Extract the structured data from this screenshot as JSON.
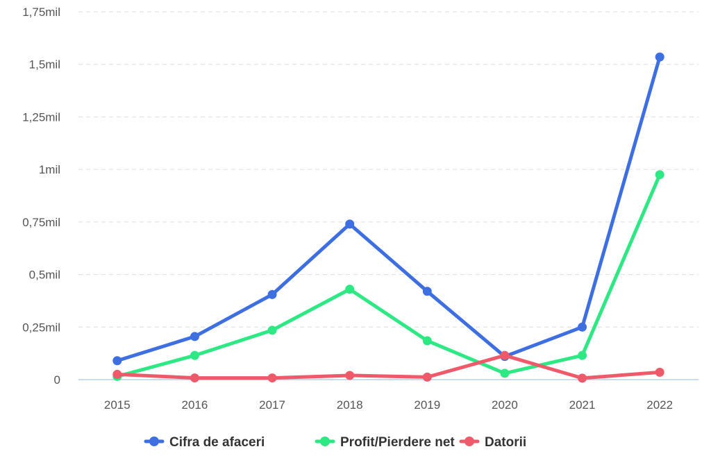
{
  "chart_data": {
    "type": "line",
    "categories": [
      "2015",
      "2016",
      "2017",
      "2018",
      "2019",
      "2020",
      "2021",
      "2022"
    ],
    "y_ticks": [
      {
        "value": 0,
        "label": "0"
      },
      {
        "value": 0.25,
        "label": "0,25mil"
      },
      {
        "value": 0.5,
        "label": "0,5mil"
      },
      {
        "value": 0.75,
        "label": "0,75mil"
      },
      {
        "value": 1.0,
        "label": "1mil"
      },
      {
        "value": 1.25,
        "label": "1,25mil"
      },
      {
        "value": 1.5,
        "label": "1,5mil"
      },
      {
        "value": 1.75,
        "label": "1,75mil"
      }
    ],
    "ylim": [
      0,
      1.75
    ],
    "grid": true,
    "legend_position": "bottom",
    "series": [
      {
        "name": "Cifra de afaceri",
        "color": "#3d6fe0",
        "values": [
          0.09,
          0.205,
          0.405,
          0.74,
          0.42,
          0.11,
          0.25,
          1.535
        ]
      },
      {
        "name": "Profit/Pierdere net",
        "color": "#2ee884",
        "values": [
          0.015,
          0.115,
          0.235,
          0.43,
          0.185,
          0.03,
          0.115,
          0.975
        ]
      },
      {
        "name": "Datorii",
        "color": "#ef5a6a",
        "values": [
          0.025,
          0.008,
          0.008,
          0.02,
          0.012,
          0.115,
          0.007,
          0.035
        ]
      }
    ]
  }
}
